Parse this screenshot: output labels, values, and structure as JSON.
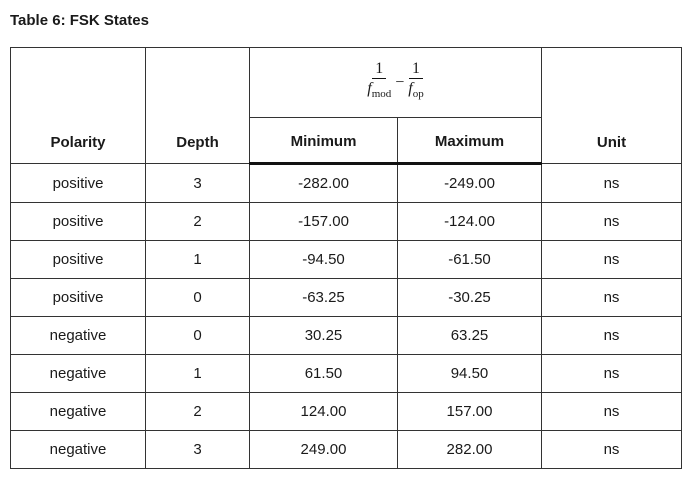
{
  "title": "Table 6: FSK States",
  "table": {
    "formula": {
      "left_numerator": "1",
      "left_symbol": "f",
      "left_subscript": "mod",
      "operator": "−",
      "right_numerator": "1",
      "right_symbol": "f",
      "right_subscript": "op"
    },
    "headers": [
      "Polarity",
      "Depth",
      "Minimum",
      "Maximum",
      "Unit"
    ],
    "rows": [
      [
        "positive",
        "3",
        "-282.00",
        "-249.00",
        "ns"
      ],
      [
        "positive",
        "2",
        "-157.00",
        "-124.00",
        "ns"
      ],
      [
        "positive",
        "1",
        "-94.50",
        "-61.50",
        "ns"
      ],
      [
        "positive",
        "0",
        "-63.25",
        "-30.25",
        "ns"
      ],
      [
        "negative",
        "0",
        "30.25",
        "63.25",
        "ns"
      ],
      [
        "negative",
        "1",
        "61.50",
        "94.50",
        "ns"
      ],
      [
        "negative",
        "2",
        "124.00",
        "157.00",
        "ns"
      ],
      [
        "negative",
        "3",
        "249.00",
        "282.00",
        "ns"
      ]
    ]
  }
}
